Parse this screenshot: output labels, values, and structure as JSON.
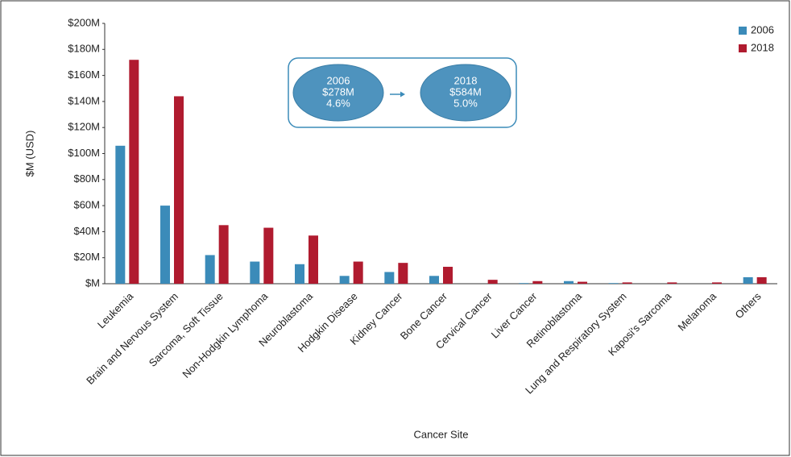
{
  "chart_data": {
    "type": "bar",
    "x_label": "Cancer Site",
    "y_label": "$M (USD)",
    "categories": [
      "Leukemia",
      "Brain and Nervous System",
      "Sarcoma, Soft Tissue",
      "Non-Hodgkin Lymphoma",
      "Neuroblastoma",
      "Hodgkin Disease",
      "Kidney Cancer",
      "Bone Cancer",
      "Cervical Cancer",
      "Liver Cancer",
      "Retinoblastoma",
      "Lung and Respiratory System",
      "Kaposi's Sarcoma",
      "Melanoma",
      "Others"
    ],
    "series": [
      {
        "name": "2006",
        "color": "#3b8bb9",
        "values": [
          106,
          60,
          22,
          17,
          15,
          6,
          9,
          6,
          0,
          0.5,
          2,
          0.5,
          0,
          0,
          5
        ]
      },
      {
        "name": "2018",
        "color": "#b01b2f",
        "values": [
          172,
          144,
          45,
          43,
          37,
          17,
          16,
          13,
          3,
          2,
          1.5,
          1,
          1,
          1,
          5
        ]
      }
    ],
    "ylim": [
      0,
      200
    ],
    "yticks": [
      {
        "value": 0,
        "label": "$M"
      },
      {
        "value": 20,
        "label": "$20M"
      },
      {
        "value": 40,
        "label": "$40M"
      },
      {
        "value": 60,
        "label": "$60M"
      },
      {
        "value": 80,
        "label": "$80M"
      },
      {
        "value": 100,
        "label": "$100M"
      },
      {
        "value": 120,
        "label": "$120M"
      },
      {
        "value": 140,
        "label": "$140M"
      },
      {
        "value": 160,
        "label": "$160M"
      },
      {
        "value": 180,
        "label": "$180M"
      },
      {
        "value": 200,
        "label": "$200M"
      }
    ],
    "legend": "top-right",
    "annotations": [
      {
        "lines": [
          "2006",
          "$278M",
          "4.6%"
        ]
      },
      {
        "lines": [
          "2018",
          "$584M",
          "5.0%"
        ]
      }
    ]
  }
}
